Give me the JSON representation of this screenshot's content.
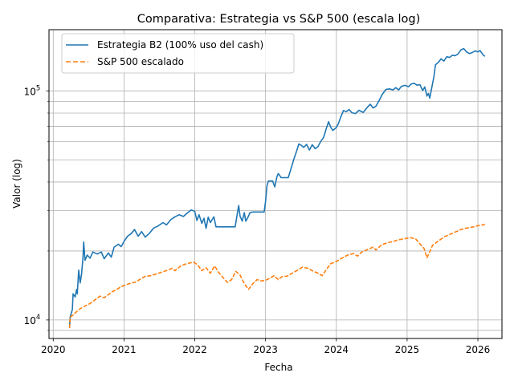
{
  "chart_data": {
    "type": "line",
    "title": "Comparativa: Estrategia vs S&P 500 (escala log)",
    "xlabel": "Fecha",
    "ylabel": "Valor (log)",
    "yscale": "log",
    "xlim": [
      2019.94,
      2026.34
    ],
    "ylim": [
      8300,
      185000
    ],
    "grid": true,
    "legend_position": "top-left",
    "x_ticks": [
      2020,
      2021,
      2022,
      2023,
      2024,
      2025,
      2026
    ],
    "x_tick_labels": [
      "2020",
      "2021",
      "2022",
      "2023",
      "2024",
      "2025",
      "2026"
    ],
    "y_major_ticks": [
      10000,
      100000
    ],
    "y_major_tick_labels": [
      {
        "base": "10",
        "exp": "4"
      },
      {
        "base": "10",
        "exp": "5"
      }
    ],
    "y_minor_ticks": [
      9000,
      20000,
      30000,
      40000,
      50000,
      60000,
      70000,
      80000,
      90000
    ],
    "series": [
      {
        "name": "Estrategia B2 (100% uso del cash)",
        "color": "#1f77b4",
        "style": "solid",
        "points": [
          [
            2020.23,
            9400
          ],
          [
            2020.24,
            10300
          ],
          [
            2020.27,
            11100
          ],
          [
            2020.28,
            13000
          ],
          [
            2020.31,
            12600
          ],
          [
            2020.33,
            13600
          ],
          [
            2020.34,
            13000
          ],
          [
            2020.36,
            16500
          ],
          [
            2020.38,
            14500
          ],
          [
            2020.4,
            15800
          ],
          [
            2020.42,
            18600
          ],
          [
            2020.43,
            21900
          ],
          [
            2020.45,
            18200
          ],
          [
            2020.48,
            19200
          ],
          [
            2020.52,
            18600
          ],
          [
            2020.56,
            19800
          ],
          [
            2020.62,
            19400
          ],
          [
            2020.68,
            19800
          ],
          [
            2020.72,
            18500
          ],
          [
            2020.78,
            19600
          ],
          [
            2020.82,
            18800
          ],
          [
            2020.86,
            20800
          ],
          [
            2020.92,
            21400
          ],
          [
            2020.96,
            20900
          ],
          [
            2021.0,
            22000
          ],
          [
            2021.05,
            23200
          ],
          [
            2021.1,
            23800
          ],
          [
            2021.15,
            24800
          ],
          [
            2021.2,
            23200
          ],
          [
            2021.25,
            24300
          ],
          [
            2021.3,
            23000
          ],
          [
            2021.36,
            23900
          ],
          [
            2021.42,
            25200
          ],
          [
            2021.48,
            25700
          ],
          [
            2021.55,
            26600
          ],
          [
            2021.6,
            26000
          ],
          [
            2021.66,
            27400
          ],
          [
            2021.72,
            28200
          ],
          [
            2021.78,
            28800
          ],
          [
            2021.84,
            28300
          ],
          [
            2021.9,
            29400
          ],
          [
            2021.95,
            30200
          ],
          [
            2022.0,
            29800
          ],
          [
            2022.03,
            27200
          ],
          [
            2022.06,
            28800
          ],
          [
            2022.1,
            26400
          ],
          [
            2022.13,
            27800
          ],
          [
            2022.16,
            25100
          ],
          [
            2022.19,
            28100
          ],
          [
            2022.22,
            26600
          ],
          [
            2022.27,
            28200
          ],
          [
            2022.3,
            25500
          ],
          [
            2022.32,
            25500
          ],
          [
            2022.4,
            25500
          ],
          [
            2022.5,
            25500
          ],
          [
            2022.57,
            25500
          ],
          [
            2022.6,
            29000
          ],
          [
            2022.62,
            31600
          ],
          [
            2022.64,
            28400
          ],
          [
            2022.67,
            27000
          ],
          [
            2022.7,
            29400
          ],
          [
            2022.72,
            27000
          ],
          [
            2022.75,
            28000
          ],
          [
            2022.78,
            29400
          ],
          [
            2022.82,
            29600
          ],
          [
            2022.9,
            29600
          ],
          [
            2022.98,
            29600
          ],
          [
            2023.0,
            33000
          ],
          [
            2023.02,
            38500
          ],
          [
            2023.04,
            40400
          ],
          [
            2023.1,
            40400
          ],
          [
            2023.13,
            38100
          ],
          [
            2023.16,
            42200
          ],
          [
            2023.18,
            43600
          ],
          [
            2023.22,
            41800
          ],
          [
            2023.27,
            41800
          ],
          [
            2023.32,
            41800
          ],
          [
            2023.36,
            45800
          ],
          [
            2023.4,
            50300
          ],
          [
            2023.44,
            54700
          ],
          [
            2023.47,
            58700
          ],
          [
            2023.5,
            58000
          ],
          [
            2023.54,
            56700
          ],
          [
            2023.58,
            58400
          ],
          [
            2023.62,
            55200
          ],
          [
            2023.66,
            58200
          ],
          [
            2023.7,
            55900
          ],
          [
            2023.74,
            57100
          ],
          [
            2023.78,
            60200
          ],
          [
            2023.82,
            62600
          ],
          [
            2023.86,
            68700
          ],
          [
            2023.89,
            73400
          ],
          [
            2023.92,
            69500
          ],
          [
            2023.95,
            67200
          ],
          [
            2024.0,
            69200
          ],
          [
            2024.03,
            72100
          ],
          [
            2024.06,
            76600
          ],
          [
            2024.1,
            82000
          ],
          [
            2024.14,
            81200
          ],
          [
            2024.18,
            82800
          ],
          [
            2024.22,
            80300
          ],
          [
            2024.27,
            79600
          ],
          [
            2024.32,
            82300
          ],
          [
            2024.38,
            80600
          ],
          [
            2024.44,
            85000
          ],
          [
            2024.48,
            87400
          ],
          [
            2024.52,
            84200
          ],
          [
            2024.56,
            85700
          ],
          [
            2024.6,
            90300
          ],
          [
            2024.65,
            96700
          ],
          [
            2024.7,
            101500
          ],
          [
            2024.75,
            102000
          ],
          [
            2024.8,
            101000
          ],
          [
            2024.84,
            103400
          ],
          [
            2024.88,
            101000
          ],
          [
            2024.92,
            104700
          ],
          [
            2024.97,
            105700
          ],
          [
            2025.02,
            104300
          ],
          [
            2025.06,
            107300
          ],
          [
            2025.1,
            108000
          ],
          [
            2025.14,
            105900
          ],
          [
            2025.18,
            106500
          ],
          [
            2025.22,
            100300
          ],
          [
            2025.25,
            104000
          ],
          [
            2025.28,
            95000
          ],
          [
            2025.3,
            97500
          ],
          [
            2025.32,
            93000
          ],
          [
            2025.35,
            104000
          ],
          [
            2025.38,
            116000
          ],
          [
            2025.4,
            130000
          ],
          [
            2025.44,
            133000
          ],
          [
            2025.48,
            138000
          ],
          [
            2025.52,
            135000
          ],
          [
            2025.56,
            141000
          ],
          [
            2025.6,
            140000
          ],
          [
            2025.64,
            143000
          ],
          [
            2025.68,
            142500
          ],
          [
            2025.72,
            145000
          ],
          [
            2025.76,
            151000
          ],
          [
            2025.8,
            153000
          ],
          [
            2025.84,
            148000
          ],
          [
            2025.88,
            145500
          ],
          [
            2025.92,
            147000
          ],
          [
            2025.96,
            149500
          ],
          [
            2026.0,
            148000
          ],
          [
            2026.03,
            150000
          ],
          [
            2026.07,
            144000
          ],
          [
            2026.1,
            141500
          ]
        ]
      },
      {
        "name": "S&P 500 escalado",
        "color": "#ff7f0e",
        "style": "dashed",
        "points": [
          [
            2020.23,
            9200
          ],
          [
            2020.24,
            10300
          ],
          [
            2020.28,
            10500
          ],
          [
            2020.32,
            10800
          ],
          [
            2020.38,
            11200
          ],
          [
            2020.45,
            11500
          ],
          [
            2020.52,
            11800
          ],
          [
            2020.6,
            12300
          ],
          [
            2020.66,
            12700
          ],
          [
            2020.72,
            12500
          ],
          [
            2020.78,
            12900
          ],
          [
            2020.84,
            13300
          ],
          [
            2020.9,
            13600
          ],
          [
            2020.96,
            14000
          ],
          [
            2021.02,
            14200
          ],
          [
            2021.1,
            14500
          ],
          [
            2021.16,
            14600
          ],
          [
            2021.22,
            15000
          ],
          [
            2021.3,
            15500
          ],
          [
            2021.38,
            15600
          ],
          [
            2021.46,
            15900
          ],
          [
            2021.54,
            16200
          ],
          [
            2021.62,
            16500
          ],
          [
            2021.68,
            16800
          ],
          [
            2021.72,
            16400
          ],
          [
            2021.8,
            17200
          ],
          [
            2021.86,
            17500
          ],
          [
            2021.92,
            17700
          ],
          [
            2021.98,
            17900
          ],
          [
            2022.04,
            17400
          ],
          [
            2022.1,
            16400
          ],
          [
            2022.16,
            16900
          ],
          [
            2022.22,
            16000
          ],
          [
            2022.28,
            17200
          ],
          [
            2022.34,
            16100
          ],
          [
            2022.4,
            15300
          ],
          [
            2022.46,
            14600
          ],
          [
            2022.52,
            15000
          ],
          [
            2022.58,
            16300
          ],
          [
            2022.64,
            15700
          ],
          [
            2022.7,
            14400
          ],
          [
            2022.76,
            13600
          ],
          [
            2022.82,
            14400
          ],
          [
            2022.88,
            15000
          ],
          [
            2022.94,
            14800
          ],
          [
            2023.0,
            14900
          ],
          [
            2023.06,
            15200
          ],
          [
            2023.12,
            15600
          ],
          [
            2023.18,
            15000
          ],
          [
            2023.24,
            15500
          ],
          [
            2023.3,
            15500
          ],
          [
            2023.36,
            15900
          ],
          [
            2023.44,
            16400
          ],
          [
            2023.52,
            17000
          ],
          [
            2023.6,
            16800
          ],
          [
            2023.66,
            16400
          ],
          [
            2023.74,
            16000
          ],
          [
            2023.8,
            15600
          ],
          [
            2023.86,
            16600
          ],
          [
            2023.92,
            17600
          ],
          [
            2024.0,
            18000
          ],
          [
            2024.08,
            18600
          ],
          [
            2024.16,
            19200
          ],
          [
            2024.24,
            19500
          ],
          [
            2024.3,
            19000
          ],
          [
            2024.36,
            19800
          ],
          [
            2024.44,
            20300
          ],
          [
            2024.52,
            20800
          ],
          [
            2024.56,
            20200
          ],
          [
            2024.64,
            21300
          ],
          [
            2024.72,
            21700
          ],
          [
            2024.8,
            22000
          ],
          [
            2024.88,
            22400
          ],
          [
            2024.96,
            22600
          ],
          [
            2025.04,
            22900
          ],
          [
            2025.12,
            22600
          ],
          [
            2025.18,
            21500
          ],
          [
            2025.24,
            20500
          ],
          [
            2025.28,
            18700
          ],
          [
            2025.32,
            19800
          ],
          [
            2025.36,
            21200
          ],
          [
            2025.44,
            22100
          ],
          [
            2025.52,
            23000
          ],
          [
            2025.6,
            23600
          ],
          [
            2025.68,
            24200
          ],
          [
            2025.76,
            24800
          ],
          [
            2025.82,
            25100
          ],
          [
            2025.88,
            25300
          ],
          [
            2025.94,
            25500
          ],
          [
            2026.0,
            25800
          ],
          [
            2026.06,
            26000
          ],
          [
            2026.1,
            26100
          ]
        ]
      }
    ]
  }
}
